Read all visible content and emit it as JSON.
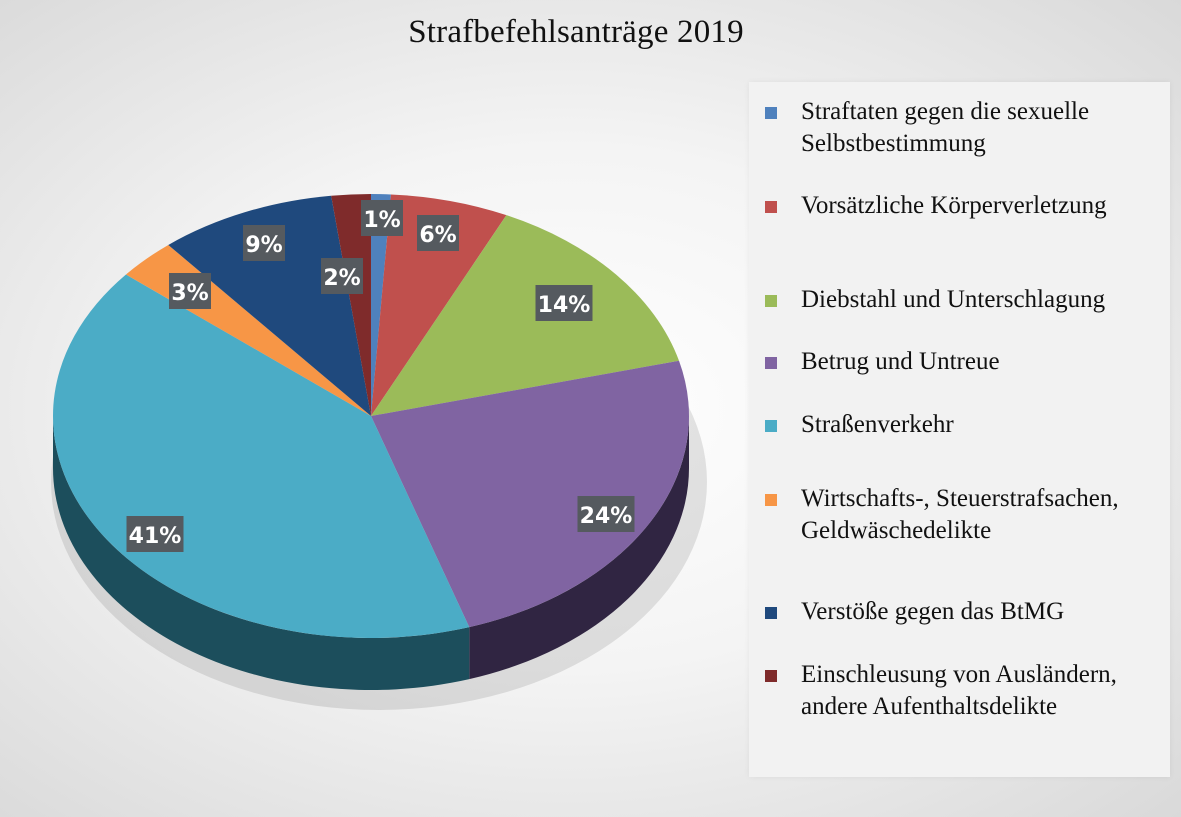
{
  "chart_data": {
    "type": "pie",
    "title": "Strafbefehlsanträge 2019",
    "legend_position": "right",
    "unit": "%",
    "slices": [
      {
        "name": "Straftaten gegen die sexuelle Selbstbestimmung",
        "value": 1,
        "label": "1%",
        "color": "#4f81bd",
        "side": "#2b4c74"
      },
      {
        "name": "Vorsätzliche Körperverletzung",
        "value": 6,
        "label": "6%",
        "color": "#c0504d",
        "side": "#772b29"
      },
      {
        "name": "Diebstahl und Unterschlagung",
        "value": 14,
        "label": "14%",
        "color": "#9bbb59",
        "side": "#5e7432"
      },
      {
        "name": "Betrug und Untreue",
        "value": 24,
        "label": "24%",
        "color": "#8064a2",
        "side": "#302542"
      },
      {
        "name": "Straßenverkehr",
        "value": 41,
        "label": "41%",
        "color": "#4bacc6",
        "side": "#1c4e5c"
      },
      {
        "name": "Wirtschafts-, Steuerstrafsachen, Geldwäschedelikte",
        "value": 3,
        "label": "3%",
        "color": "#f79646",
        "side": "#9a5316"
      },
      {
        "name": "Verstöße gegen das BtMG",
        "value": 9,
        "label": "9%",
        "color": "#1f497d",
        "side": "#10294a"
      },
      {
        "name": "Einschleusung von Ausländern, andere Aufenthaltsdelikte",
        "value": 2,
        "label": "2%",
        "color": "#7f2b2b",
        "side": "#4a1616"
      }
    ]
  }
}
